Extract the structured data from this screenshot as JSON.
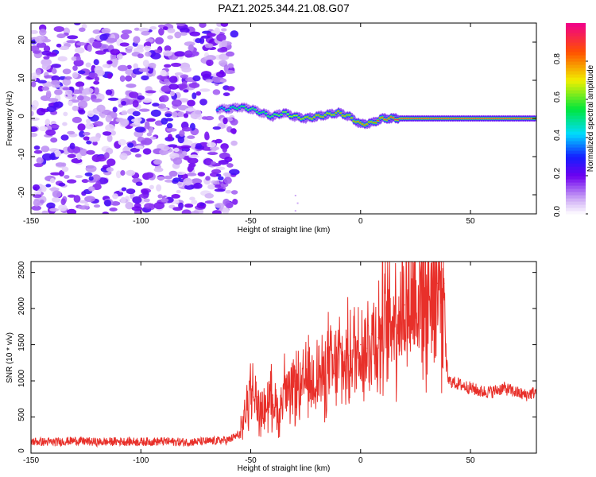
{
  "title": "PAZ1.2025.344.21.08.G07",
  "colors": {
    "snr_line": "#e8302a",
    "axis": "#000000",
    "background": "#ffffff"
  },
  "chart_data": [
    {
      "type": "heatmap",
      "xlabel": "Height of straight line (km)",
      "ylabel": "Frequency (Hz)",
      "xlim": [
        -150,
        80
      ],
      "ylim": [
        -25,
        25
      ],
      "xticks": [
        -150,
        -100,
        -50,
        0,
        50
      ],
      "xtick_labels": [
        "-150",
        "-100",
        "-50",
        "0",
        "50"
      ],
      "yticks": [
        -20,
        -10,
        0,
        10,
        20
      ],
      "ytick_labels": [
        "-20",
        "-10",
        "0",
        "10",
        "20"
      ],
      "noise_region_x": [
        -150,
        -60
      ],
      "signal_track": {
        "x": [
          -65,
          -60,
          -55,
          -50,
          -45,
          -40,
          -35,
          -30,
          -25,
          -20,
          -15,
          -10,
          -5,
          0,
          5,
          10,
          15,
          20,
          30,
          40,
          50,
          60,
          70,
          80
        ],
        "freq": [
          2.5,
          2.5,
          3,
          2.5,
          1.5,
          0.5,
          1.5,
          0.5,
          0,
          0.5,
          1,
          1.5,
          0.5,
          -1.5,
          -1.2,
          0,
          0,
          0,
          0,
          0,
          0,
          0,
          0,
          0
        ],
        "amplitude": [
          0.35,
          0.45,
          0.5,
          0.55,
          0.5,
          0.55,
          0.6,
          0.65,
          0.7,
          0.75,
          0.7,
          0.75,
          0.7,
          0.8,
          0.75,
          0.85,
          0.9,
          0.95,
          0.95,
          0.95,
          0.95,
          0.95,
          0.95,
          0.95
        ]
      },
      "colorbar": {
        "label": "Normalized spectral amplitude",
        "range": [
          0,
          1
        ],
        "ticks": [
          0.0,
          0.2,
          0.4,
          0.6,
          0.8
        ],
        "tick_labels": [
          "0.0",
          "0.2",
          "0.4",
          "0.6",
          "0.8"
        ]
      }
    },
    {
      "type": "line",
      "xlabel": "Height of straight line (km)",
      "ylabel": "SNR (10 * v/v)",
      "xlim": [
        -150,
        80
      ],
      "ylim": [
        0,
        2650
      ],
      "xticks": [
        -150,
        -100,
        -50,
        0,
        50
      ],
      "xtick_labels": [
        "-150",
        "-100",
        "-50",
        "0",
        "50"
      ],
      "yticks": [
        0,
        500,
        1000,
        1500,
        2000,
        2500
      ],
      "ytick_labels": [
        "0",
        "500",
        "1000",
        "1500",
        "2000",
        "2500"
      ],
      "series": [
        {
          "name": "SNR",
          "x": [
            -150,
            -140,
            -130,
            -120,
            -110,
            -100,
            -90,
            -80,
            -70,
            -60,
            -55,
            -52,
            -50,
            -48,
            -45,
            -42,
            -40,
            -37,
            -35,
            -32,
            -30,
            -27,
            -25,
            -22,
            -20,
            -17,
            -15,
            -12,
            -10,
            -7,
            -5,
            -2,
            0,
            3,
            5,
            8,
            10,
            13,
            15,
            20,
            25,
            30,
            35,
            38,
            39,
            40,
            45,
            50,
            55,
            60,
            65,
            70,
            75,
            80
          ],
          "y": [
            150,
            140,
            160,
            140,
            150,
            145,
            150,
            140,
            150,
            170,
            250,
            600,
            900,
            750,
            550,
            700,
            800,
            500,
            950,
            700,
            1000,
            800,
            1050,
            950,
            1150,
            1000,
            1250,
            1100,
            1300,
            1200,
            1350,
            1400,
            1500,
            1450,
            1650,
            1600,
            1700,
            1800,
            1900,
            2050,
            2150,
            2300,
            2350,
            2350,
            1150,
            1000,
            950,
            900,
            850,
            850,
            900,
            850,
            800,
            850
          ]
        }
      ]
    }
  ]
}
